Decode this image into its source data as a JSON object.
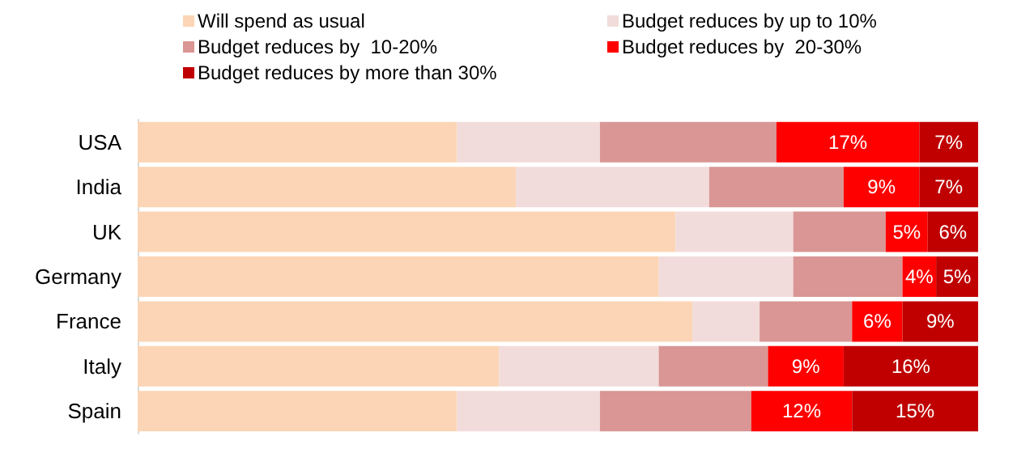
{
  "chart_data": {
    "type": "bar",
    "orientation": "horizontal",
    "stacked": true,
    "tick_labels": "y",
    "legend": "top",
    "categories": [
      "USA",
      "India",
      "UK",
      "Germany",
      "France",
      "Italy",
      "Spain"
    ],
    "series": [
      {
        "name": "Will spend as usual",
        "color": "#fbd5b5",
        "values": [
          38,
          45,
          64,
          62,
          66,
          43,
          38
        ]
      },
      {
        "name": "Budget reduces by up to 10%",
        "color": "#f2dcdb",
        "values": [
          17,
          23,
          14,
          16,
          8,
          19,
          17
        ]
      },
      {
        "name": "Budget reduces by  10-20%",
        "color": "#d99694",
        "values": [
          21,
          16,
          11,
          13,
          11,
          13,
          18
        ]
      },
      {
        "name": "Budget reduces by  20-30%",
        "color": "#ff0000",
        "values": [
          17,
          9,
          5,
          4,
          6,
          9,
          12
        ],
        "value_labels": [
          "17%",
          "9%",
          "5%",
          "4%",
          "6%",
          "9%",
          "12%"
        ]
      },
      {
        "name": "Budget reduces by more than 30%",
        "color": "#c00000",
        "values": [
          7,
          7,
          6,
          5,
          9,
          16,
          15
        ],
        "value_labels": [
          "7%",
          "7%",
          "6%",
          "5%",
          "9%",
          "16%",
          "15%"
        ]
      }
    ]
  }
}
